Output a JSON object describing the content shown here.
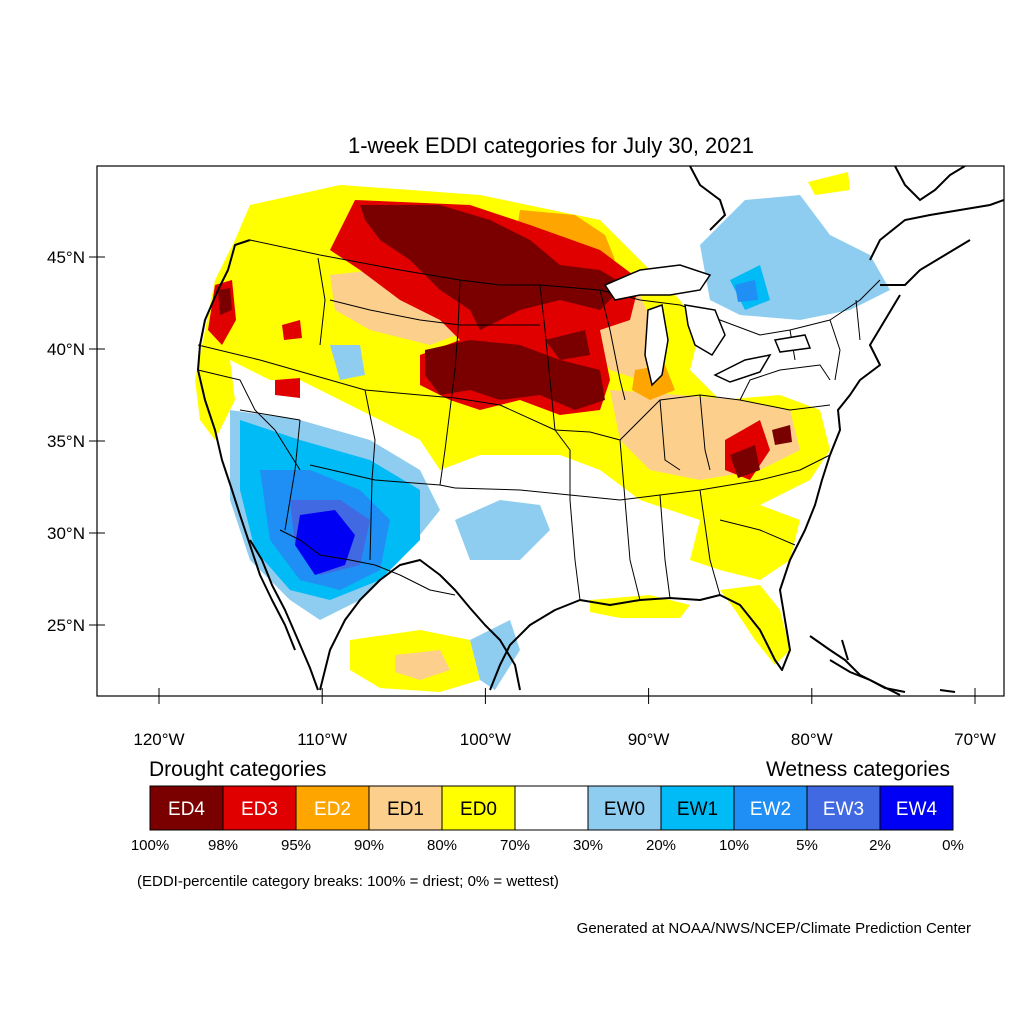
{
  "title": "1-week EDDI categories for July 30, 2021",
  "map": {
    "lat_axis": [
      {
        "value": 45,
        "label": "45°N"
      },
      {
        "value": 40,
        "label": "40°N"
      },
      {
        "value": 35,
        "label": "35°N"
      },
      {
        "value": 30,
        "label": "30°N"
      },
      {
        "value": 25,
        "label": "25°N"
      }
    ],
    "lon_axis": [
      {
        "value": -120,
        "label": "120°W"
      },
      {
        "value": -110,
        "label": "110°W"
      },
      {
        "value": -100,
        "label": "100°W"
      },
      {
        "value": -90,
        "label": "90°W"
      },
      {
        "value": -80,
        "label": "80°W"
      },
      {
        "value": -70,
        "label": "70°W"
      }
    ]
  },
  "legend": {
    "drought_heading": "Drought categories",
    "wetness_heading": "Wetness categories",
    "categories": [
      {
        "label": "ED4",
        "color": "#7a0000",
        "text_color": "#ffffff"
      },
      {
        "label": "ED3",
        "color": "#e00000",
        "text_color": "#ffffff"
      },
      {
        "label": "ED2",
        "color": "#ffa500",
        "text_color": "#ffffff"
      },
      {
        "label": "ED1",
        "color": "#fdcf8d",
        "text_color": "#000000"
      },
      {
        "label": "ED0",
        "color": "#ffff00",
        "text_color": "#000000"
      },
      {
        "label": "",
        "color": "#ffffff",
        "text_color": "#000000"
      },
      {
        "label": "EW0",
        "color": "#8ecdf0",
        "text_color": "#000000"
      },
      {
        "label": "EW1",
        "color": "#00bbf5",
        "text_color": "#000000"
      },
      {
        "label": "EW2",
        "color": "#1f8ef5",
        "text_color": "#ffffff"
      },
      {
        "label": "EW3",
        "color": "#4169e1",
        "text_color": "#ffffff"
      },
      {
        "label": "EW4",
        "color": "#0000f5",
        "text_color": "#ffffff"
      }
    ],
    "breaks": [
      "100%",
      "98%",
      "95%",
      "90%",
      "80%",
      "70%",
      "30%",
      "20%",
      "10%",
      "5%",
      "2%",
      "0%"
    ],
    "note": "(EDDI-percentile category breaks: 100% = driest; 0% = wettest)"
  },
  "credit": "Generated at NOAA/NWS/NCEP/Climate Prediction Center"
}
